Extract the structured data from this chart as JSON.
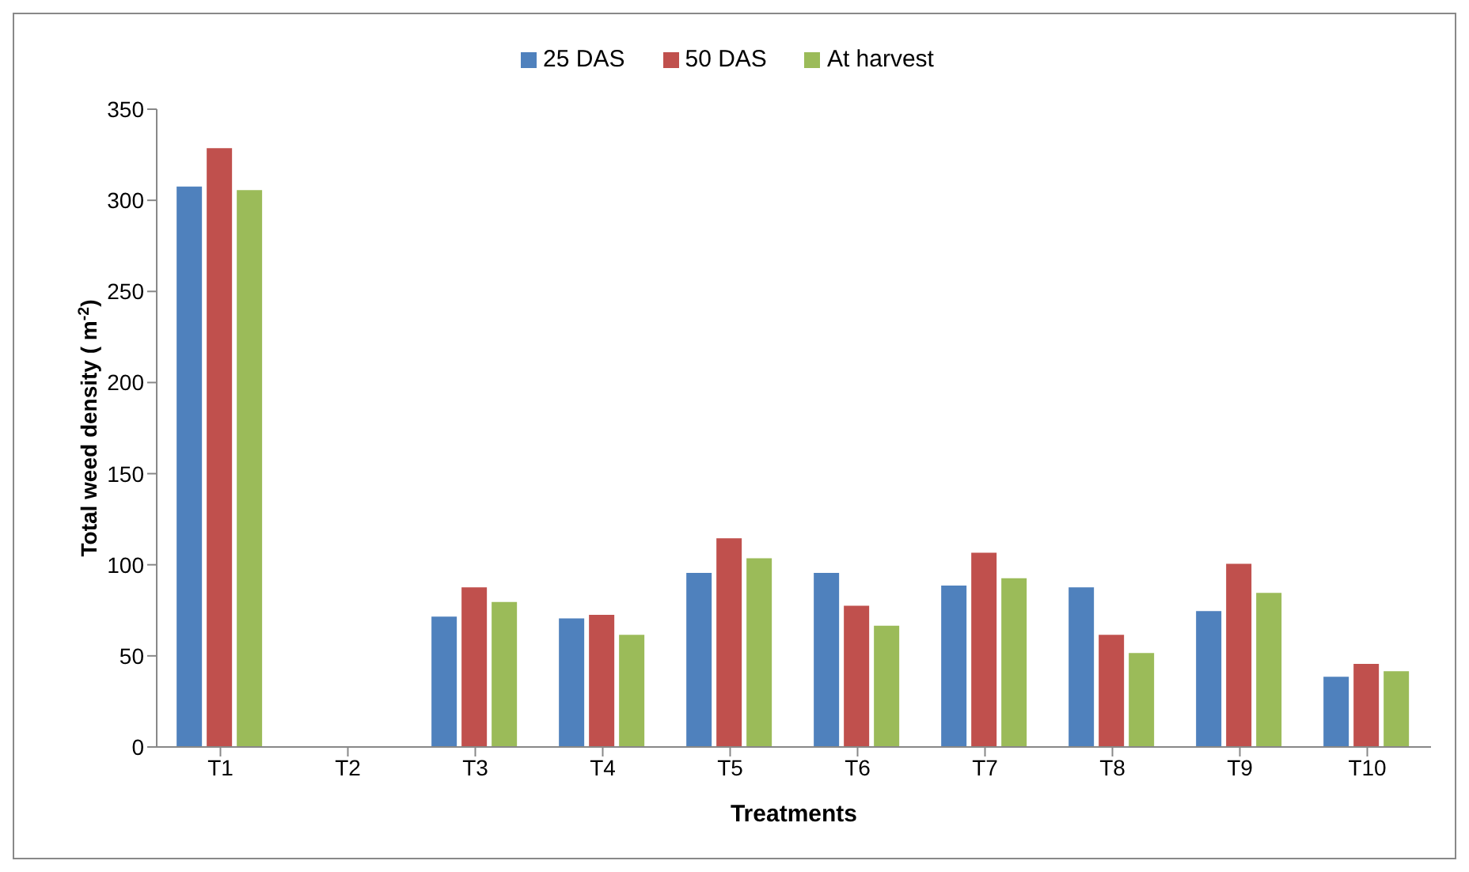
{
  "chart_data": {
    "type": "bar",
    "xlabel": "Treatments",
    "ylabel": "Total weed density ( m$^{-2}$)",
    "categories": [
      "T1",
      "T2",
      "T3",
      "T4",
      "T5",
      "T6",
      "T7",
      "T8",
      "T9",
      "T10"
    ],
    "series": [
      {
        "name": "25 DAS",
        "color": "#4f81bd",
        "values": [
          308,
          0,
          72,
          71,
          96,
          96,
          89,
          88,
          75,
          39
        ]
      },
      {
        "name": "50 DAS",
        "color": "#c0504d",
        "values": [
          329,
          0,
          88,
          73,
          115,
          78,
          107,
          62,
          101,
          46
        ]
      },
      {
        "name": "At harvest",
        "color": "#9bbb59",
        "values": [
          306,
          0,
          80,
          62,
          104,
          67,
          93,
          52,
          85,
          42
        ]
      }
    ],
    "ylim": [
      0,
      350
    ],
    "yticks": [
      0,
      50,
      100,
      150,
      200,
      250,
      300,
      350
    ],
    "grid": false,
    "legend": "top"
  }
}
